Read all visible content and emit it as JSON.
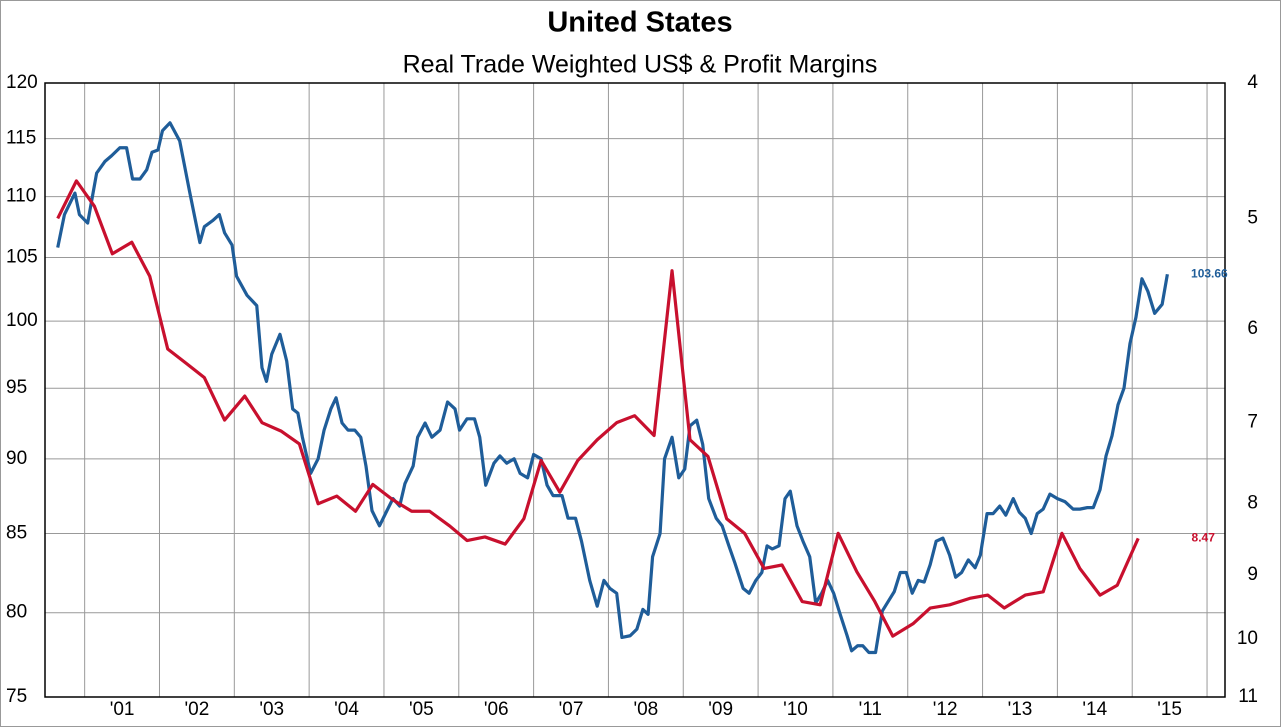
{
  "chart_data": {
    "type": "line",
    "title": "United States",
    "subtitle": "Real Trade Weighted US$ & Profit Margins",
    "xlim": [
      2000.47,
      2016.24
    ],
    "xticks": [
      {
        "value": 2001,
        "label": "'01"
      },
      {
        "value": 2002,
        "label": "'02"
      },
      {
        "value": 2003,
        "label": "'03"
      },
      {
        "value": 2004,
        "label": "'04"
      },
      {
        "value": 2005,
        "label": "'05"
      },
      {
        "value": 2006,
        "label": "'06"
      },
      {
        "value": 2007,
        "label": "'07"
      },
      {
        "value": 2008,
        "label": "'08"
      },
      {
        "value": 2009,
        "label": "'09"
      },
      {
        "value": 2010,
        "label": "'10"
      },
      {
        "value": 2011,
        "label": "'11"
      },
      {
        "value": 2012,
        "label": "'12"
      },
      {
        "value": 2013,
        "label": "'13"
      },
      {
        "value": 2014,
        "label": "'14"
      },
      {
        "value": 2015,
        "label": "'15"
      },
      {
        "value": 2016,
        "label": null
      }
    ],
    "ylim": [
      75,
      120
    ],
    "yticks": [
      75,
      80,
      85,
      90,
      95,
      100,
      105,
      110,
      115,
      120
    ],
    "y_log": true,
    "y2lim": [
      4,
      11
    ],
    "y2ticks": [
      4,
      5,
      6,
      7,
      8,
      9,
      10,
      11
    ],
    "y2_log": true,
    "y2_inverted": true,
    "grid": true,
    "last_value_label": true,
    "series": [
      {
        "color": "#1f5d99",
        "x": [
          2000.64,
          2000.73,
          2000.87,
          2000.93,
          2001.04,
          2001.16,
          2001.27,
          2001.36,
          2001.47,
          2001.56,
          2001.64,
          2001.74,
          2001.83,
          2001.9,
          2001.98,
          2002.04,
          2002.14,
          2002.27,
          2002.4,
          2002.54,
          2002.6,
          2002.71,
          2002.8,
          2002.87,
          2002.97,
          2003.03,
          2003.17,
          2003.3,
          2003.37,
          2003.43,
          2003.5,
          2003.61,
          2003.7,
          2003.78,
          2003.85,
          2003.91,
          2004.02,
          2004.12,
          2004.2,
          2004.29,
          2004.36,
          2004.44,
          2004.52,
          2004.61,
          2004.69,
          2004.76,
          2004.84,
          2004.94,
          2005.04,
          2005.12,
          2005.21,
          2005.28,
          2005.39,
          2005.45,
          2005.55,
          2005.64,
          2005.75,
          2005.85,
          2005.95,
          2006.01,
          2006.11,
          2006.21,
          2006.28,
          2006.36,
          2006.47,
          2006.55,
          2006.64,
          2006.74,
          2006.82,
          2006.92,
          2007.0,
          2007.1,
          2007.18,
          2007.26,
          2007.38,
          2007.46,
          2007.56,
          2007.64,
          2007.75,
          2007.85,
          2007.94,
          2008.02,
          2008.11,
          2008.18,
          2008.29,
          2008.38,
          2008.46,
          2008.53,
          2008.59,
          2008.69,
          2008.75,
          2008.85,
          2008.94,
          2009.02,
          2009.09,
          2009.18,
          2009.26,
          2009.34,
          2009.44,
          2009.52,
          2009.61,
          2009.69,
          2009.8,
          2009.88,
          2009.97,
          2010.05,
          2010.12,
          2010.19,
          2010.28,
          2010.36,
          2010.43,
          2010.52,
          2010.6,
          2010.69,
          2010.77,
          2010.85,
          2010.93,
          2011.01,
          2011.09,
          2011.19,
          2011.25,
          2011.33,
          2011.4,
          2011.48,
          2011.57,
          2011.66,
          2011.74,
          2011.82,
          2011.9,
          2011.98,
          2012.06,
          2012.14,
          2012.22,
          2012.3,
          2012.38,
          2012.47,
          2012.56,
          2012.64,
          2012.72,
          2012.81,
          2012.9,
          2012.97,
          2013.06,
          2013.14,
          2013.23,
          2013.31,
          2013.41,
          2013.49,
          2013.57,
          2013.65,
          2013.73,
          2013.81,
          2013.9,
          2014.0,
          2014.1,
          2014.21,
          2014.3,
          2014.4,
          2014.48,
          2014.57,
          2014.65,
          2014.73,
          2014.81,
          2014.89,
          2014.97,
          2015.05,
          2015.13,
          2015.21,
          2015.3,
          2015.4,
          2015.47
        ],
        "values": [
          105.8,
          108.5,
          110.3,
          108.5,
          107.8,
          112,
          113,
          113.5,
          114.2,
          114.2,
          111.5,
          111.5,
          112.3,
          113.8,
          114,
          115.7,
          116.4,
          114.8,
          110.5,
          106.2,
          107.5,
          108,
          108.5,
          107,
          106,
          103.5,
          102,
          101.2,
          96.5,
          95.5,
          97.5,
          99,
          97,
          93.5,
          93.2,
          91.5,
          89,
          90,
          92,
          93.5,
          94.3,
          92.5,
          92,
          92,
          91.5,
          89.5,
          86.5,
          85.5,
          86.5,
          87.3,
          86.8,
          88.3,
          89.5,
          91.5,
          92.5,
          91.5,
          92,
          94,
          93.5,
          92,
          92.8,
          92.8,
          91.5,
          88.2,
          89.7,
          90.2,
          89.7,
          90,
          89,
          88.7,
          90.3,
          90,
          88.2,
          87.5,
          87.5,
          86,
          86,
          84.5,
          82,
          80.4,
          82,
          81.5,
          81.2,
          78.5,
          78.6,
          79,
          80.2,
          79.9,
          83.5,
          85,
          90,
          91.5,
          88.7,
          89.3,
          92.3,
          92.7,
          91,
          87.3,
          86,
          85.5,
          84.2,
          83.1,
          81.5,
          81.2,
          82,
          82.5,
          84.2,
          84,
          84.2,
          87.3,
          87.8,
          85.5,
          84.5,
          83.5,
          80.6,
          81.2,
          82,
          81.2,
          80,
          78.6,
          77.7,
          78,
          78,
          77.6,
          77.6,
          80.1,
          80.7,
          81.3,
          82.5,
          82.5,
          81.2,
          82,
          81.9,
          83,
          84.5,
          84.7,
          83.6,
          82.2,
          82.5,
          83.3,
          82.8,
          83.6,
          86.3,
          86.3,
          86.8,
          86.2,
          87.3,
          86.4,
          86,
          85,
          86.3,
          86.6,
          87.6,
          87.3,
          87.1,
          86.6,
          86.6,
          86.7,
          86.7,
          87.9,
          90.2,
          91.6,
          93.8,
          95,
          98.3,
          100.3,
          103.3,
          102.3,
          100.6,
          101.3,
          103.66
        ]
      },
      {
        "color": "#c8102e",
        "axis": "y2",
        "x": [
          2000.64,
          2000.89,
          2001.13,
          2001.37,
          2001.63,
          2001.87,
          2002.11,
          2002.36,
          2002.6,
          2002.87,
          2003.14,
          2003.37,
          2003.63,
          2003.87,
          2004.12,
          2004.37,
          2004.62,
          2004.85,
          2005.12,
          2005.37,
          2005.61,
          2005.88,
          2006.11,
          2006.35,
          2006.62,
          2006.87,
          2007.1,
          2007.35,
          2007.59,
          2007.85,
          2008.11,
          2008.35,
          2008.61,
          2008.85,
          2009.09,
          2009.33,
          2009.58,
          2009.82,
          2010.08,
          2010.32,
          2010.59,
          2010.83,
          2011.07,
          2011.32,
          2011.56,
          2011.8,
          2012.07,
          2012.3,
          2012.56,
          2012.83,
          2013.07,
          2013.29,
          2013.57,
          2013.81,
          2014.06,
          2014.3,
          2014.57,
          2014.8,
          2015.08
        ],
        "values": [
          5.0,
          4.7,
          4.9,
          5.3,
          5.2,
          5.5,
          6.2,
          6.35,
          6.5,
          6.97,
          6.7,
          7.0,
          7.1,
          7.25,
          8.0,
          7.9,
          8.1,
          7.75,
          7.95,
          8.1,
          8.1,
          8.3,
          8.5,
          8.45,
          8.55,
          8.2,
          7.45,
          7.85,
          7.45,
          7.2,
          7.0,
          6.92,
          7.15,
          5.45,
          7.2,
          7.4,
          8.2,
          8.4,
          8.9,
          8.85,
          9.4,
          9.45,
          8.4,
          8.95,
          9.4,
          9.95,
          9.75,
          9.5,
          9.45,
          9.35,
          9.3,
          9.5,
          9.3,
          9.25,
          8.4,
          8.9,
          9.3,
          9.15,
          8.47
        ]
      }
    ]
  }
}
